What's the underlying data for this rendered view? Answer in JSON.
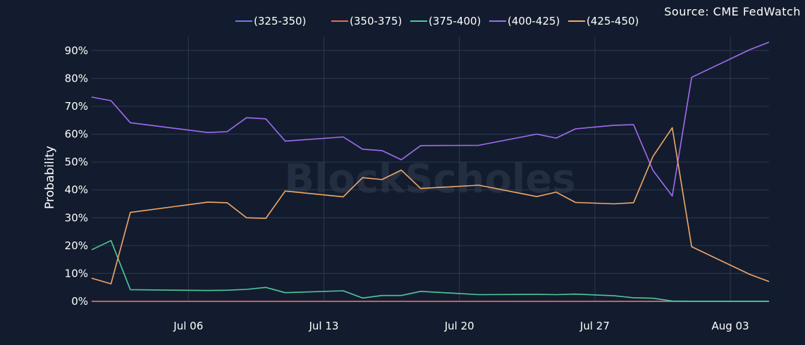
{
  "source_text": "Source: CME FedWatch",
  "watermark_text": "BlockScholes",
  "chart_data": {
    "type": "line",
    "ylabel": "Probability",
    "xlabel": "",
    "ylim": [
      0,
      0.95
    ],
    "yticks": [
      0,
      0.1,
      0.2,
      0.3,
      0.4,
      0.5,
      0.6,
      0.7,
      0.8,
      0.9
    ],
    "ytick_labels": [
      "0%",
      "10%",
      "20%",
      "30%",
      "40%",
      "50%",
      "60%",
      "70%",
      "80%",
      "90%"
    ],
    "xticks": [
      "2023-07-06",
      "2023-07-13",
      "2023-07-20",
      "2023-07-27",
      "2023-08-03"
    ],
    "xtick_labels": [
      "Jul 06",
      "Jul 13",
      "Jul 20",
      "Jul 27",
      "Aug 03"
    ],
    "xlim": [
      "2023-07-01",
      "2023-08-05"
    ],
    "grid": true,
    "legend_position": "top",
    "x": [
      "2023-07-01",
      "2023-07-02",
      "2023-07-03",
      "2023-07-07",
      "2023-07-08",
      "2023-07-09",
      "2023-07-10",
      "2023-07-11",
      "2023-07-14",
      "2023-07-15",
      "2023-07-16",
      "2023-07-17",
      "2023-07-18",
      "2023-07-21",
      "2023-07-24",
      "2023-07-25",
      "2023-07-26",
      "2023-07-28",
      "2023-07-29",
      "2023-07-30",
      "2023-07-31",
      "2023-08-01",
      "2023-08-04",
      "2023-08-05"
    ],
    "series": [
      {
        "name": "(325-350)",
        "color": "#6b7cf0",
        "values": [
          0,
          0,
          0,
          0,
          0,
          0,
          0,
          0,
          0,
          0,
          0,
          0,
          0,
          0,
          0,
          0,
          0,
          0,
          0,
          0,
          0,
          0,
          0,
          0
        ]
      },
      {
        "name": "(350-375)",
        "color": "#ec6a52",
        "values": [
          0,
          0,
          0,
          0,
          0,
          0,
          0,
          0,
          0,
          0,
          0,
          0,
          0,
          0,
          0,
          0,
          0,
          0,
          0,
          0,
          0,
          0,
          0,
          0
        ]
      },
      {
        "name": "(375-400)",
        "color": "#4ec99b",
        "values": [
          0.185,
          0.218,
          0.042,
          0.039,
          0.04,
          0.043,
          0.05,
          0.031,
          0.038,
          0.012,
          0.021,
          0.021,
          0.036,
          0.024,
          0.025,
          0.024,
          0.026,
          0.02,
          0.013,
          0.011,
          0.001,
          0.0005,
          0.0005,
          0.0005
        ]
      },
      {
        "name": "(400-425)",
        "color": "#a26cf2",
        "values": [
          0.733,
          0.72,
          0.641,
          0.606,
          0.609,
          0.659,
          0.655,
          0.575,
          0.59,
          0.546,
          0.541,
          0.508,
          0.559,
          0.56,
          0.6,
          0.586,
          0.619,
          0.632,
          0.634,
          0.47,
          0.378,
          0.804,
          0.903,
          0.93
        ]
      },
      {
        "name": "(425-450)",
        "color": "#f1a868",
        "values": [
          0.083,
          0.063,
          0.319,
          0.356,
          0.354,
          0.3,
          0.298,
          0.396,
          0.375,
          0.444,
          0.437,
          0.471,
          0.405,
          0.417,
          0.376,
          0.392,
          0.355,
          0.35,
          0.354,
          0.52,
          0.623,
          0.196,
          0.097,
          0.071
        ]
      }
    ]
  }
}
